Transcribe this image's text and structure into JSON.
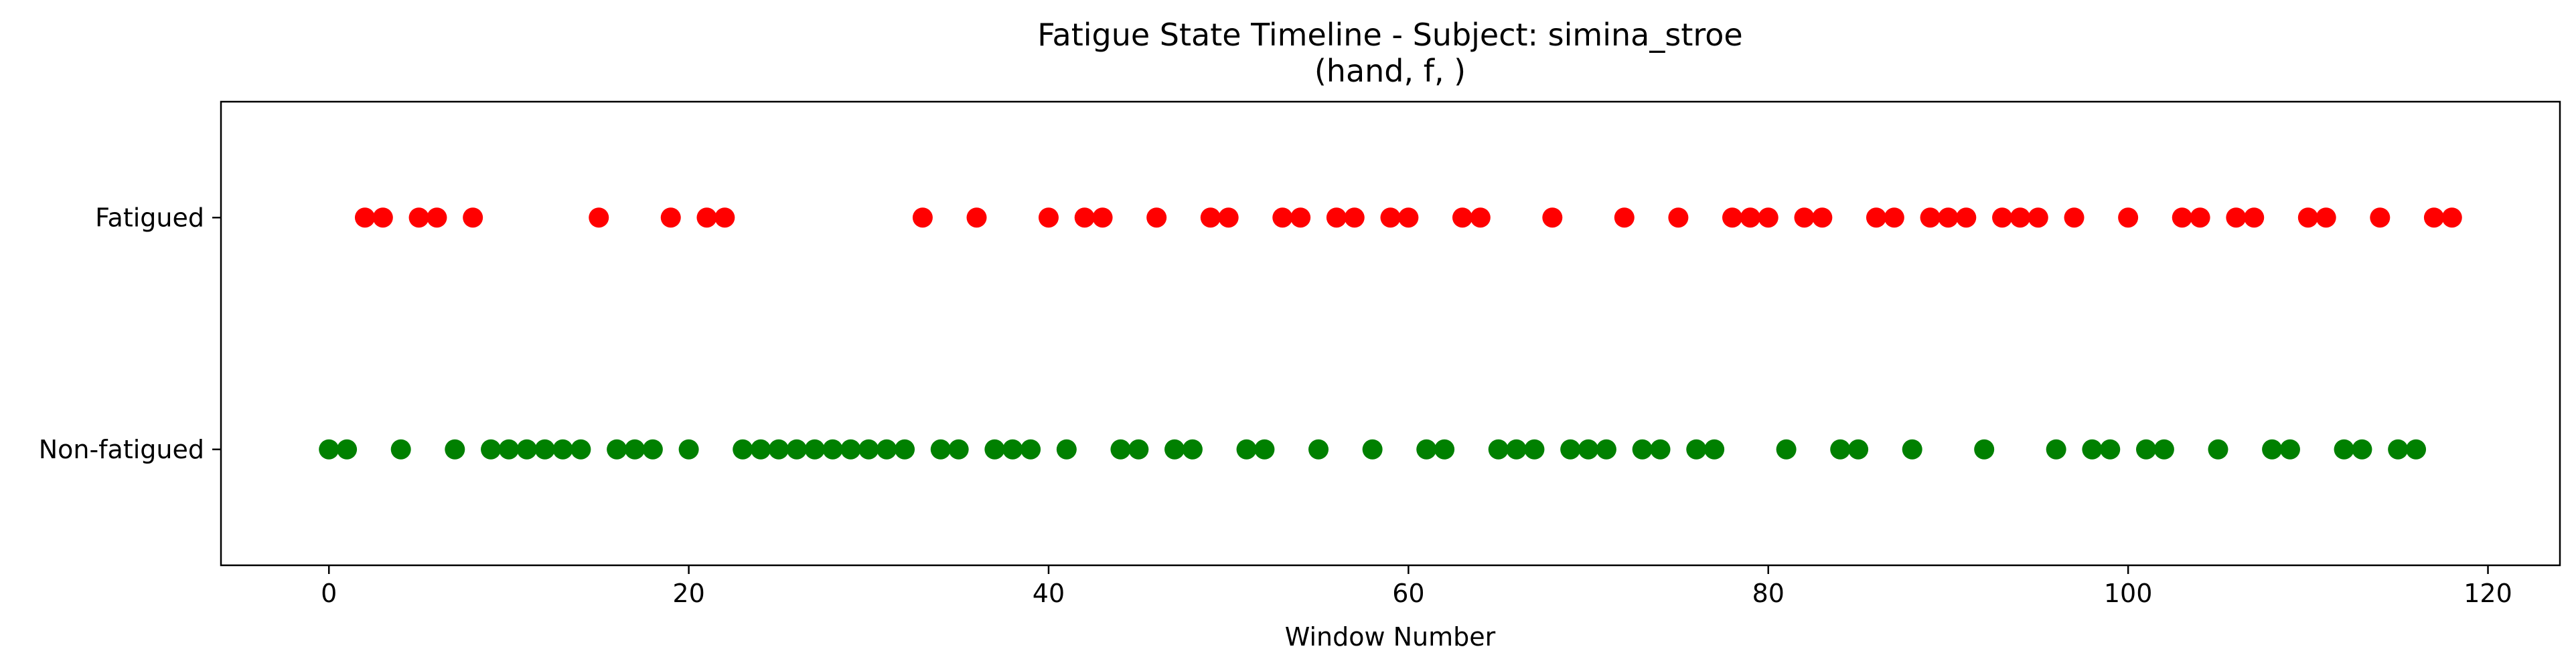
{
  "chart_data": {
    "type": "scatter",
    "title": "Fatigue State Timeline - Subject: simina_stroe",
    "subtitle": "(hand, f, )",
    "xlabel": "Window Number",
    "ylabel": "",
    "xlim": [
      -6,
      124
    ],
    "ylim": [
      -0.5,
      1.5
    ],
    "xticks": [
      0,
      20,
      40,
      60,
      80,
      100,
      120
    ],
    "yticks": [
      {
        "value": 0,
        "label": "Non-fatigued"
      },
      {
        "value": 1,
        "label": "Fatigued"
      }
    ],
    "grid": false,
    "series": [
      {
        "y": 1,
        "color": "#ff0000",
        "x": [
          2,
          3,
          5,
          6,
          8,
          15,
          19,
          21,
          22,
          33,
          36,
          40,
          42,
          43,
          46,
          49,
          50,
          53,
          54,
          56,
          57,
          59,
          60,
          63,
          64,
          68,
          72,
          75,
          78,
          79,
          80,
          82,
          83,
          86,
          87,
          89,
          90,
          91,
          93,
          94,
          95,
          97,
          100,
          103,
          104,
          106,
          107,
          110,
          111,
          114,
          117,
          118
        ]
      },
      {
        "y": 0,
        "color": "#008000",
        "x": [
          0,
          1,
          4,
          7,
          9,
          10,
          11,
          12,
          13,
          14,
          16,
          17,
          18,
          20,
          23,
          24,
          25,
          26,
          27,
          28,
          29,
          30,
          31,
          32,
          34,
          35,
          37,
          38,
          39,
          41,
          44,
          45,
          47,
          48,
          51,
          52,
          55,
          58,
          61,
          62,
          65,
          66,
          67,
          69,
          70,
          71,
          73,
          74,
          76,
          77,
          81,
          84,
          85,
          88,
          92,
          96,
          98,
          99,
          101,
          102,
          105,
          108,
          109,
          112,
          113,
          115,
          116
        ]
      }
    ]
  }
}
